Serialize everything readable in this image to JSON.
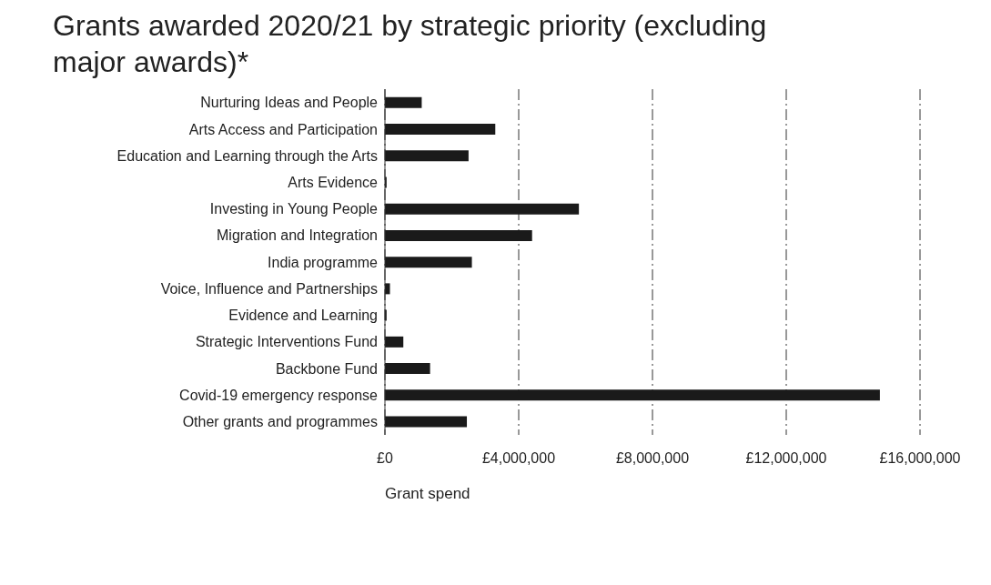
{
  "chart_data": {
    "type": "bar",
    "orientation": "horizontal",
    "title": "Grants awarded 2020/21 by strategic priority (excluding major awards)*",
    "xlabel": "Grant spend",
    "categories": [
      "Nurturing Ideas and People",
      "Arts Access and Participation",
      "Education and Learning through the Arts",
      "Arts Evidence",
      "Investing in Young People",
      "Migration and Integration",
      "India programme",
      "Voice, Influence and Partnerships",
      "Evidence and Learning",
      "Strategic Interventions Fund",
      "Backbone Fund",
      "Covid-19 emergency response",
      "Other grants and programmes"
    ],
    "values": [
      1100000,
      3300000,
      2500000,
      50000,
      5800000,
      4400000,
      2600000,
      150000,
      50000,
      550000,
      1350000,
      14800000,
      2450000
    ],
    "color": "#1a1a1a",
    "xlim": [
      0,
      16000000
    ],
    "xticks": [
      {
        "value": 0,
        "label": "£0"
      },
      {
        "value": 4000000,
        "label": "£4,000,000"
      },
      {
        "value": 8000000,
        "label": "£8,000,000"
      },
      {
        "value": 12000000,
        "label": "£12,000,000"
      },
      {
        "value": 16000000,
        "label": "£16,000,000"
      }
    ],
    "grid": "x"
  }
}
